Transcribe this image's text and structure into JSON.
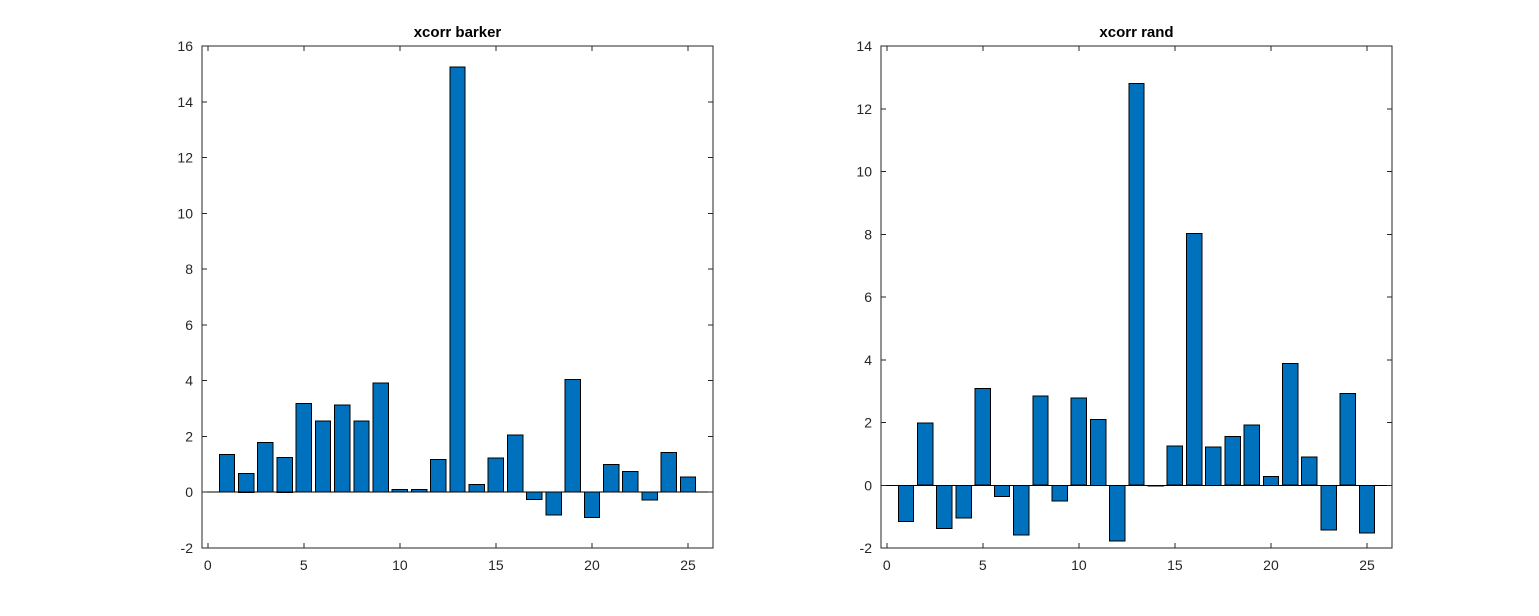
{
  "chart_data": [
    {
      "type": "bar",
      "title": "xcorr barker",
      "x": [
        1,
        2,
        3,
        4,
        5,
        6,
        7,
        8,
        9,
        10,
        11,
        12,
        13,
        14,
        15,
        16,
        17,
        18,
        19,
        20,
        21,
        22,
        23,
        24,
        25
      ],
      "values": [
        1.35,
        0.68,
        1.78,
        1.25,
        3.18,
        2.55,
        3.12,
        2.55,
        3.92,
        0.1,
        0.1,
        1.18,
        15.25,
        0.28,
        1.22,
        2.05,
        -0.27,
        -0.82,
        4.05,
        -0.9,
        1.0,
        0.75,
        -0.28,
        1.42,
        0.55
      ],
      "xlim": [
        -0.3,
        26.3
      ],
      "ylim": [
        -2,
        16
      ],
      "xticks": [
        0,
        5,
        10,
        15,
        20,
        25
      ],
      "yticks": [
        -2,
        0,
        2,
        4,
        6,
        8,
        10,
        12,
        14,
        16
      ],
      "bar_color": "#0072BD",
      "xlabel": "",
      "ylabel": "",
      "grid": false
    },
    {
      "type": "bar",
      "title": "xcorr rand",
      "x": [
        1,
        2,
        3,
        4,
        5,
        6,
        7,
        8,
        9,
        10,
        11,
        12,
        13,
        14,
        15,
        16,
        17,
        18,
        19,
        20,
        21,
        22,
        23,
        24,
        25
      ],
      "values": [
        -1.15,
        1.98,
        -1.38,
        -1.05,
        3.08,
        -0.35,
        -1.58,
        2.85,
        -0.5,
        2.78,
        2.1,
        -1.78,
        12.8,
        -0.02,
        1.25,
        8.02,
        1.22,
        1.55,
        1.92,
        0.28,
        3.88,
        0.9,
        -1.42,
        2.92,
        -1.52
      ],
      "xlim": [
        -0.3,
        26.3
      ],
      "ylim": [
        -2,
        14
      ],
      "xticks": [
        0,
        5,
        10,
        15,
        20,
        25
      ],
      "yticks": [
        -2,
        0,
        2,
        4,
        6,
        8,
        10,
        12,
        14
      ],
      "bar_color": "#0072BD",
      "xlabel": "",
      "ylabel": "",
      "grid": false
    }
  ]
}
